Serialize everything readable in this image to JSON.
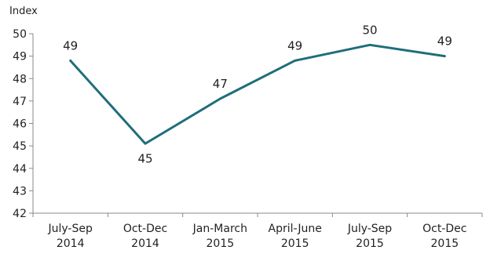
{
  "chart_data": {
    "type": "line",
    "title": "",
    "ylabel": "Index",
    "xlabel": "",
    "categories": [
      [
        "July-Sep",
        "2014"
      ],
      [
        "Oct-Dec",
        "2014"
      ],
      [
        "Jan-March",
        "2015"
      ],
      [
        "April-June",
        "2015"
      ],
      [
        "July-Sep",
        "2015"
      ],
      [
        "Oct-Dec",
        "2015"
      ]
    ],
    "series": [
      {
        "values": [
          48.8,
          45.1,
          47.1,
          48.8,
          49.5,
          49.0
        ],
        "labels": [
          "49",
          "45",
          "47",
          "49",
          "50",
          "49"
        ],
        "color": "#1f6e7a"
      }
    ],
    "ylim": [
      42,
      50
    ],
    "yticks": [
      42,
      43,
      44,
      45,
      46,
      47,
      48,
      49,
      50
    ],
    "grid": false,
    "legend": "none"
  }
}
